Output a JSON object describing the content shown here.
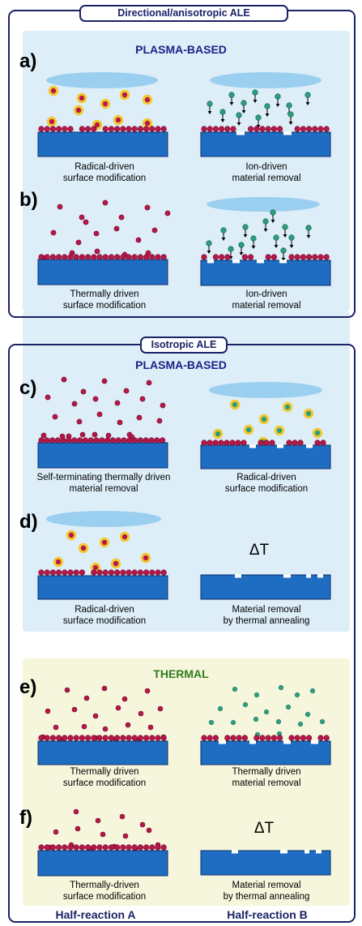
{
  "sections": {
    "directional_title": "Directional/anisotropic ALE",
    "isotropic_title": "Isotropic ALE",
    "plasma_label_1": "PLASMA-BASED",
    "plasma_label_2": "PLASMA-BASED",
    "thermal_label": "THERMAL"
  },
  "panels": {
    "a": {
      "label": "a)",
      "left_caption": [
        "Radical-driven",
        "surface modification"
      ],
      "right_caption": [
        "Ion-driven",
        "material removal"
      ]
    },
    "b": {
      "label": "b)",
      "left_caption": [
        "Thermally driven",
        "surface modification"
      ],
      "right_caption": [
        "Ion-driven",
        "material removal"
      ]
    },
    "c": {
      "label": "c)",
      "left_caption": [
        "Self-terminating thermally driven",
        "material removal"
      ],
      "right_caption": [
        "Radical-driven",
        "surface modification"
      ]
    },
    "d": {
      "label": "d)",
      "left_caption": [
        "Radical-driven",
        "surface modification"
      ],
      "right_caption": [
        "Material removal",
        "by thermal annealing"
      ],
      "right_symbol": "ΔT"
    },
    "e": {
      "label": "e)",
      "left_caption": [
        "Thermally driven",
        "surface modification"
      ],
      "right_caption": [
        "Thermally driven",
        "material removal"
      ]
    },
    "f": {
      "label": "f)",
      "left_caption": [
        "Thermally-driven",
        "surface modification"
      ],
      "right_caption": [
        "Material removal",
        "by thermal annealing"
      ],
      "right_symbol": "ΔT"
    }
  },
  "footer": {
    "left": "Half-reaction A",
    "right": "Half-reaction B"
  },
  "colors": {
    "frame": "#1a2266",
    "plasma_bg": "#ddeef9",
    "thermal_bg": "#f6f6dd",
    "substrate": "#1f6dc2",
    "atom": "#b8174a",
    "radical_glow": "#f5c20c",
    "ion": "#2c9e7e",
    "plasma_cloud": "#8ec9ee",
    "plasma_title": "#1a2388",
    "thermal_title": "#2e7d1c"
  }
}
